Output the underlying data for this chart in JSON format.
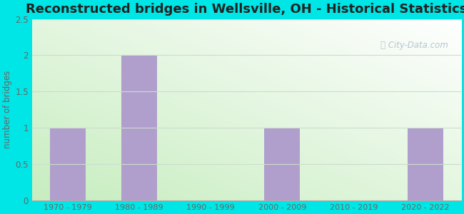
{
  "title": "Reconstructed bridges in Wellsville, OH - Historical Statistics",
  "categories": [
    "1970 - 1979",
    "1980 - 1989",
    "1990 - 1999",
    "2000 - 2009",
    "2010 - 2019",
    "2020 - 2022"
  ],
  "values": [
    1,
    2,
    0,
    1,
    0,
    1
  ],
  "bar_color": "#b09fcc",
  "ylabel": "number of bridges",
  "ylim": [
    0,
    2.5
  ],
  "yticks": [
    0,
    0.5,
    1,
    1.5,
    2,
    2.5
  ],
  "background_outer": "#00e5e5",
  "title_fontsize": 13,
  "title_color": "#222222",
  "axis_label_color": "#666666",
  "tick_color": "#666666",
  "watermark_text": "City-Data.com",
  "watermark_color": "#aabbcc",
  "grid_color": "#ccddcc",
  "bar_width": 0.5
}
